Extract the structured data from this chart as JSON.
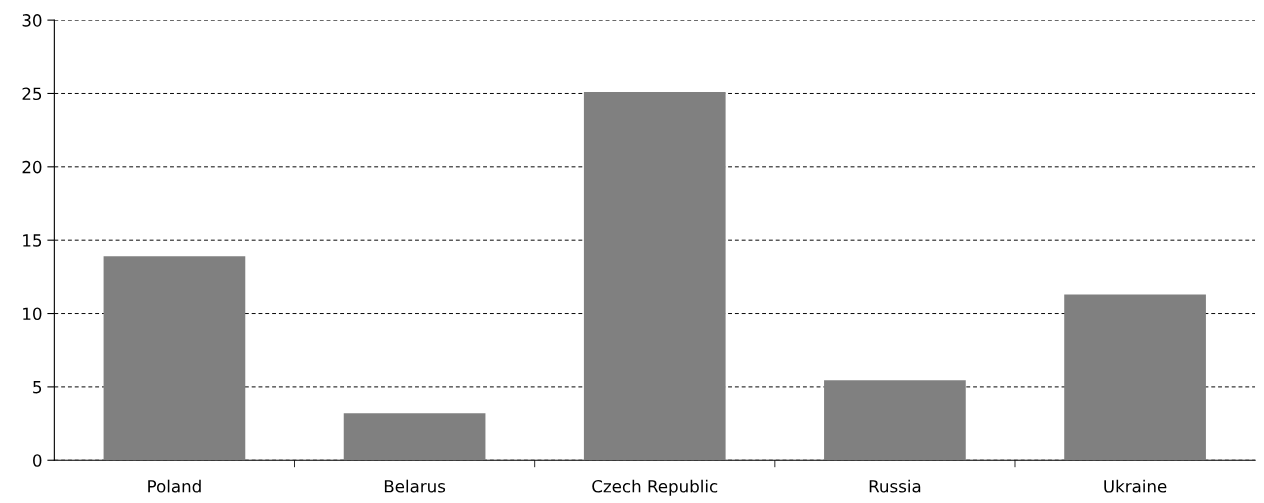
{
  "chart_data": {
    "type": "bar",
    "categories": [
      "Poland",
      "Belarus",
      "Czech Republic",
      "Russia",
      "Ukraine"
    ],
    "values": [
      13.9,
      3.2,
      25.1,
      5.45,
      11.3
    ],
    "color": "#808080",
    "ylim": [
      0,
      30
    ],
    "yticks": [
      0,
      5,
      10,
      15,
      20,
      25,
      30
    ],
    "grid": "y",
    "line_style": "dashed",
    "legend": false
  }
}
